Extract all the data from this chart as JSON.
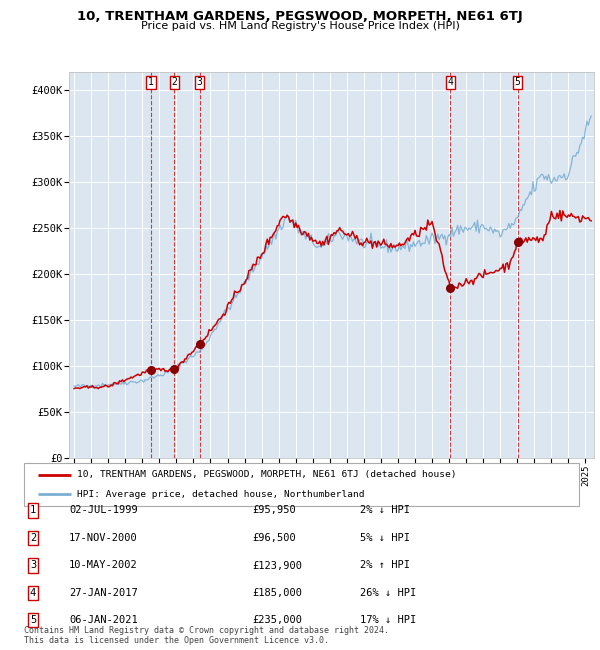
{
  "title": "10, TRENTHAM GARDENS, PEGSWOOD, MORPETH, NE61 6TJ",
  "subtitle": "Price paid vs. HM Land Registry's House Price Index (HPI)",
  "legend_line1": "10, TRENTHAM GARDENS, PEGSWOOD, MORPETH, NE61 6TJ (detached house)",
  "legend_line2": "HPI: Average price, detached house, Northumberland",
  "footer": "Contains HM Land Registry data © Crown copyright and database right 2024.\nThis data is licensed under the Open Government Licence v3.0.",
  "transactions": [
    {
      "num": 1,
      "date": "02-JUL-1999",
      "price": 95950,
      "price_str": "£95,950",
      "pct": "2%",
      "dir": "↓",
      "year": 1999.5
    },
    {
      "num": 2,
      "date": "17-NOV-2000",
      "price": 96500,
      "price_str": "£96,500",
      "pct": "5%",
      "dir": "↓",
      "year": 2000.88
    },
    {
      "num": 3,
      "date": "10-MAY-2002",
      "price": 123900,
      "price_str": "£123,900",
      "pct": "2%",
      "dir": "↑",
      "year": 2002.36
    },
    {
      "num": 4,
      "date": "27-JAN-2017",
      "price": 185000,
      "price_str": "£185,000",
      "pct": "26%",
      "dir": "↓",
      "year": 2017.07
    },
    {
      "num": 5,
      "date": "06-JAN-2021",
      "price": 235000,
      "price_str": "£235,000",
      "pct": "17%",
      "dir": "↓",
      "year": 2021.02
    }
  ],
  "ylim": [
    0,
    420000
  ],
  "yticks": [
    0,
    50000,
    100000,
    150000,
    200000,
    250000,
    300000,
    350000,
    400000
  ],
  "ytick_labels": [
    "£0",
    "£50K",
    "£100K",
    "£150K",
    "£200K",
    "£250K",
    "£300K",
    "£350K",
    "£400K"
  ],
  "xlim_start": 1994.7,
  "xlim_end": 2025.5,
  "red_color": "#cc0000",
  "blue_color": "#7bafd4",
  "plot_bg": "#dce6f1",
  "grid_color": "#ffffff",
  "marker_color": "#880000",
  "hpi_anchors": {
    "1995.0": 78000,
    "1997.0": 80000,
    "1999.0": 84000,
    "2000.5": 93000,
    "2002.5": 118000,
    "2003.5": 148000,
    "2004.5": 175000,
    "2006.0": 220000,
    "2007.5": 262000,
    "2008.5": 242000,
    "2009.5": 228000,
    "2010.5": 245000,
    "2012.0": 233000,
    "2014.0": 228000,
    "2015.5": 235000,
    "2016.5": 240000,
    "2017.5": 248000,
    "2019.0": 252000,
    "2020.0": 243000,
    "2021.0": 258000,
    "2021.5": 280000,
    "2022.5": 308000,
    "2023.0": 302000,
    "2024.0": 310000,
    "2025.3": 368000
  },
  "red_anchors": {
    "1995.0": 76000,
    "1997.0": 78000,
    "1999.5": 95950,
    "2000.88": 96500,
    "2002.36": 123900,
    "2003.5": 150000,
    "2004.5": 178000,
    "2006.0": 222000,
    "2007.3": 265000,
    "2008.5": 246000,
    "2009.5": 232000,
    "2010.5": 248000,
    "2012.0": 235000,
    "2014.0": 230000,
    "2016.0": 255000,
    "2017.07": 185000,
    "2017.5": 188000,
    "2018.5": 195000,
    "2019.5": 202000,
    "2020.5": 210000,
    "2021.02": 235000,
    "2021.5": 238000,
    "2022.5": 237000,
    "2023.0": 265000,
    "2024.0": 263000,
    "2025.3": 260000
  }
}
